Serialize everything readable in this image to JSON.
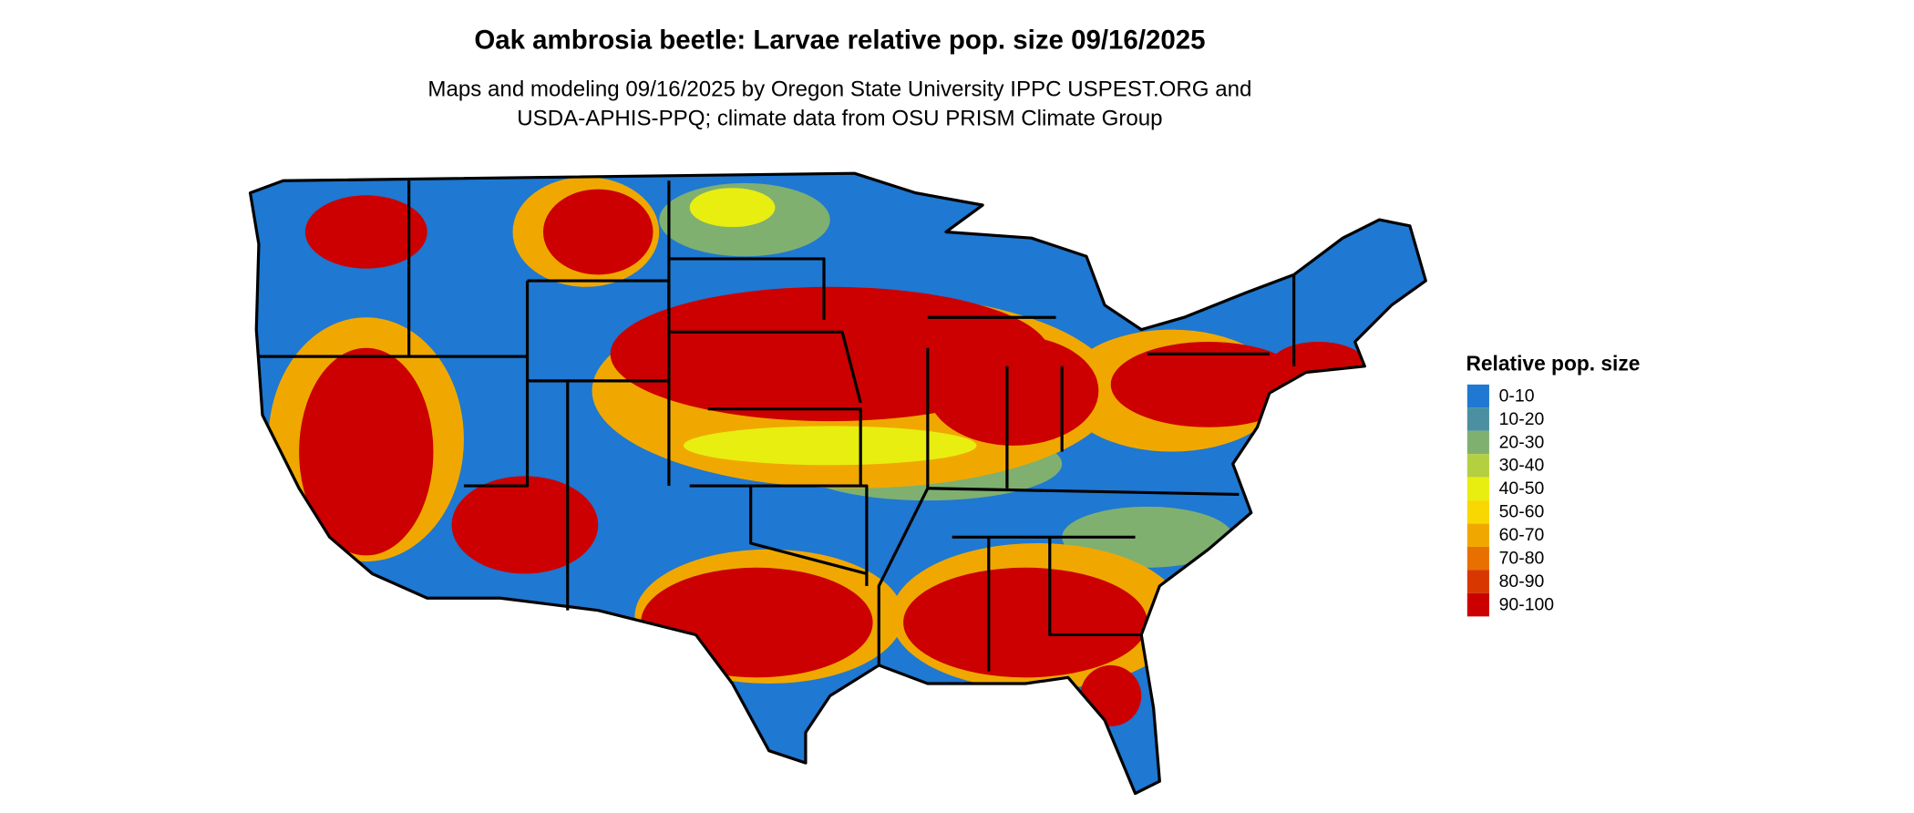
{
  "header": {
    "title": "Oak ambrosia beetle: Larvae relative pop. size 09/16/2025",
    "subtitle": [
      "Maps and modeling 09/16/2025 by Oregon State University IPPC USPEST.ORG and",
      "USDA-APHIS-PPQ; climate data from OSU PRISM Climate Group"
    ]
  },
  "legend": {
    "title": "Relative pop. size",
    "items": [
      {
        "label": "0-10",
        "color": "#1f78d1"
      },
      {
        "label": "10-20",
        "color": "#4a90a0"
      },
      {
        "label": "20-30",
        "color": "#7fb070"
      },
      {
        "label": "30-40",
        "color": "#b4d040"
      },
      {
        "label": "40-50",
        "color": "#e8ee10"
      },
      {
        "label": "50-60",
        "color": "#f8d800"
      },
      {
        "label": "60-70",
        "color": "#f0a800"
      },
      {
        "label": "70-80",
        "color": "#e87000"
      },
      {
        "label": "80-90",
        "color": "#d83800"
      },
      {
        "label": "90-100",
        "color": "#cc0000"
      }
    ]
  }
}
